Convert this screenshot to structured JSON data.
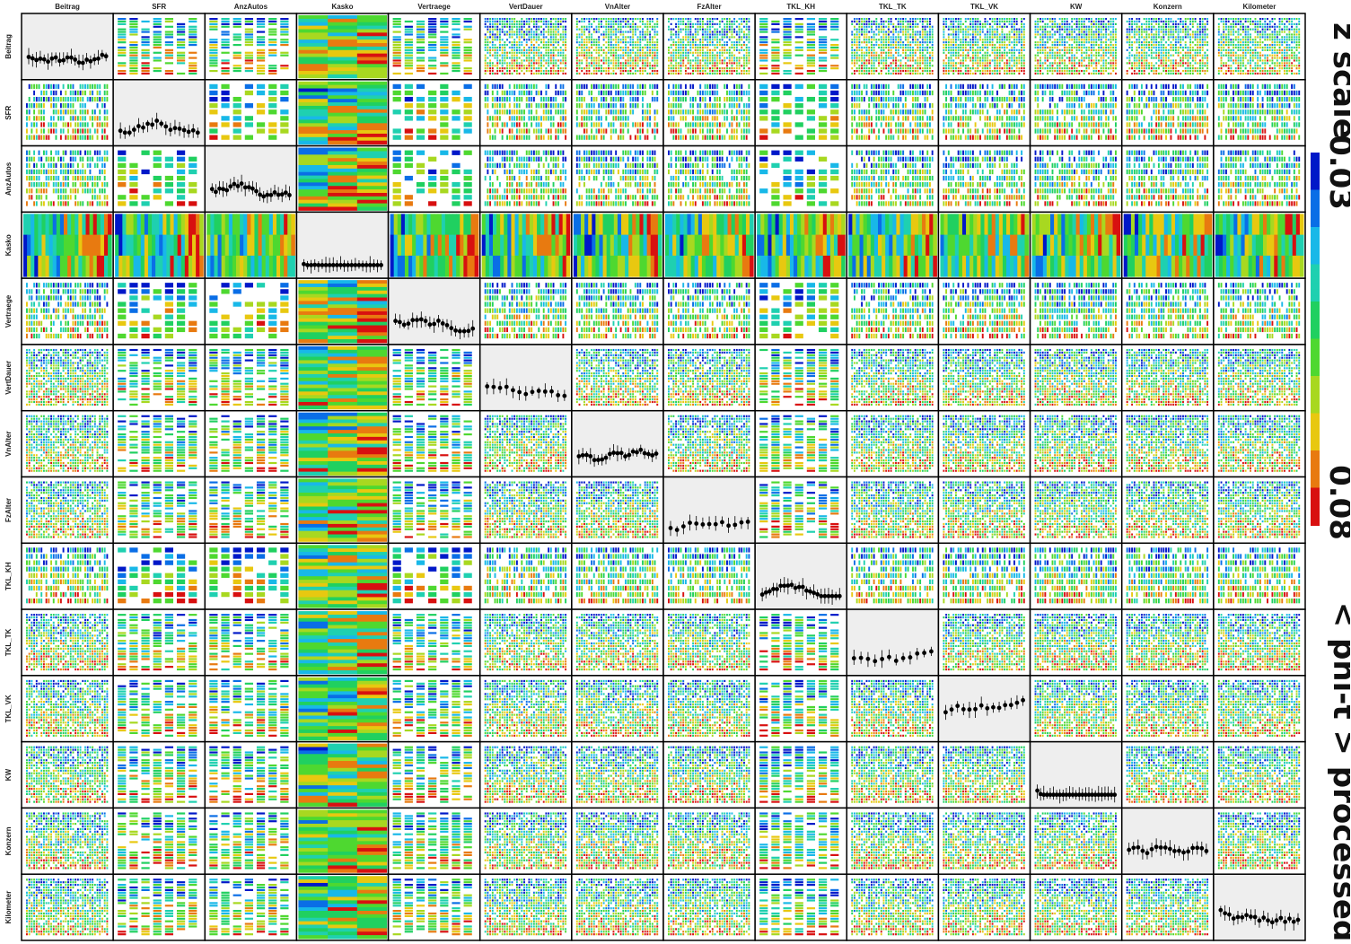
{
  "chart_data": {
    "type": "scatter-matrix",
    "variables": [
      "Beitrag",
      "SFR",
      "AnzAutos",
      "Kasko",
      "Vertraege",
      "VertDauer",
      "VnAlter",
      "FzAlter",
      "TKL_KH",
      "TKL_TK",
      "TKL_VK",
      "KW",
      "Konzern",
      "Kilometer"
    ],
    "diagonal_title": "< phi-t > processed",
    "colorbar": {
      "title": "z scale",
      "min_label": "0.03",
      "max_label": "0.08",
      "colors": [
        "#0018c8",
        "#0a6ee6",
        "#18b8e8",
        "#1fd0b0",
        "#20d060",
        "#4ed830",
        "#a8d820",
        "#e8c810",
        "#e87a10",
        "#d81010"
      ]
    },
    "diagonal_grid": false,
    "colors": {
      "diag_bg": "#eeeeee",
      "frame": "#000000",
      "points": "#000000"
    }
  }
}
